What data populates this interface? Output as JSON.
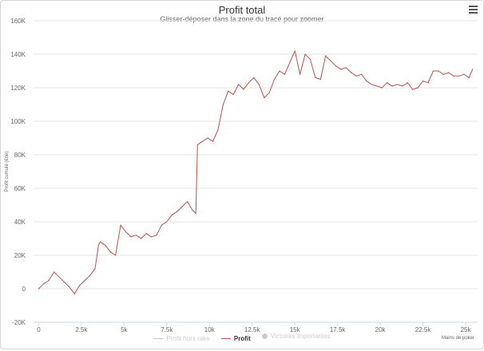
{
  "chart_data": {
    "type": "line",
    "title": "Profit total",
    "subtitle": "Glisser-déposer dans la zone du tracé pour zoomer",
    "ylabel": "Profit cumulé (€ne)",
    "xlabel": "Mains de poker",
    "ylim": [
      -20000,
      160000
    ],
    "xlim": [
      -300,
      25700
    ],
    "y_ticks": [
      {
        "value": -20000,
        "label": "-20K"
      },
      {
        "value": 0,
        "label": "0"
      },
      {
        "value": 20000,
        "label": "20K"
      },
      {
        "value": 40000,
        "label": "40K"
      },
      {
        "value": 60000,
        "label": "60K"
      },
      {
        "value": 80000,
        "label": "80K"
      },
      {
        "value": 100000,
        "label": "100K"
      },
      {
        "value": 120000,
        "label": "120K"
      },
      {
        "value": 140000,
        "label": "140K"
      },
      {
        "value": 160000,
        "label": "160K"
      }
    ],
    "x_ticks": [
      {
        "value": 0,
        "label": "0"
      },
      {
        "value": 2500,
        "label": "2.5k"
      },
      {
        "value": 5000,
        "label": "5k"
      },
      {
        "value": 7500,
        "label": "7.5k"
      },
      {
        "value": 10000,
        "label": "10k"
      },
      {
        "value": 12500,
        "label": "12.5k"
      },
      {
        "value": 15000,
        "label": "15k"
      },
      {
        "value": 17500,
        "label": "17.5k"
      },
      {
        "value": 20000,
        "label": "20k"
      },
      {
        "value": 22500,
        "label": "22.5k"
      },
      {
        "value": 25000,
        "label": "25k"
      }
    ],
    "grid": true,
    "legend_position": "bottom",
    "series": [
      {
        "name": "Profit",
        "color": "#c0504d",
        "x": [
          0,
          300,
          600,
          900,
          1200,
          1500,
          1800,
          2100,
          2400,
          2700,
          3000,
          3300,
          3500,
          3600,
          3900,
          4200,
          4500,
          4800,
          5100,
          5400,
          5700,
          6000,
          6300,
          6600,
          6900,
          7200,
          7500,
          7800,
          8100,
          8400,
          8700,
          9000,
          9200,
          9300,
          9600,
          9900,
          10200,
          10500,
          10800,
          11100,
          11400,
          11700,
          12000,
          12300,
          12600,
          12900,
          13200,
          13500,
          13800,
          14100,
          14400,
          14700,
          15000,
          15300,
          15600,
          15900,
          16200,
          16500,
          16800,
          17100,
          17400,
          17700,
          18000,
          18300,
          18600,
          18900,
          19200,
          19500,
          19800,
          20100,
          20400,
          20700,
          21000,
          21300,
          21600,
          21900,
          22200,
          22500,
          22800,
          23100,
          23400,
          23700,
          24000,
          24300,
          24600,
          24900,
          25200,
          25400
        ],
        "y": [
          0,
          3000,
          5000,
          10000,
          7000,
          4000,
          1000,
          -3000,
          2000,
          5000,
          8000,
          12000,
          26000,
          28000,
          26000,
          22000,
          20000,
          38000,
          34000,
          31000,
          32000,
          30000,
          33000,
          31000,
          32000,
          38000,
          40000,
          44000,
          46000,
          49000,
          52000,
          47000,
          45000,
          86000,
          88000,
          90000,
          88000,
          95000,
          110000,
          118000,
          116000,
          122000,
          119000,
          123000,
          126000,
          122000,
          114000,
          117000,
          125000,
          130000,
          128000,
          135000,
          142000,
          128000,
          140000,
          137000,
          126000,
          125000,
          139000,
          136000,
          133000,
          131000,
          132000,
          129000,
          127000,
          128000,
          124000,
          122000,
          121000,
          120000,
          123000,
          121000,
          122000,
          121000,
          123000,
          119000,
          120000,
          124000,
          123000,
          130000,
          130000,
          128000,
          129000,
          127000,
          127000,
          128000,
          126000,
          131000
        ]
      }
    ]
  },
  "legend": [
    {
      "label": "Profit hors rake",
      "state": "off",
      "color": "#cccccc",
      "icon": "line"
    },
    {
      "label": "Profit",
      "state": "on",
      "color": "#c0504d",
      "icon": "line"
    },
    {
      "label": "Victoires importantes",
      "state": "off",
      "color": "#cccccc",
      "icon": "dot"
    }
  ],
  "menu": {
    "icon": "hamburger-menu-icon"
  },
  "colors": {
    "grid": "#e6e6e6",
    "axis": "#ccd6eb",
    "tick_label": "#666666"
  }
}
